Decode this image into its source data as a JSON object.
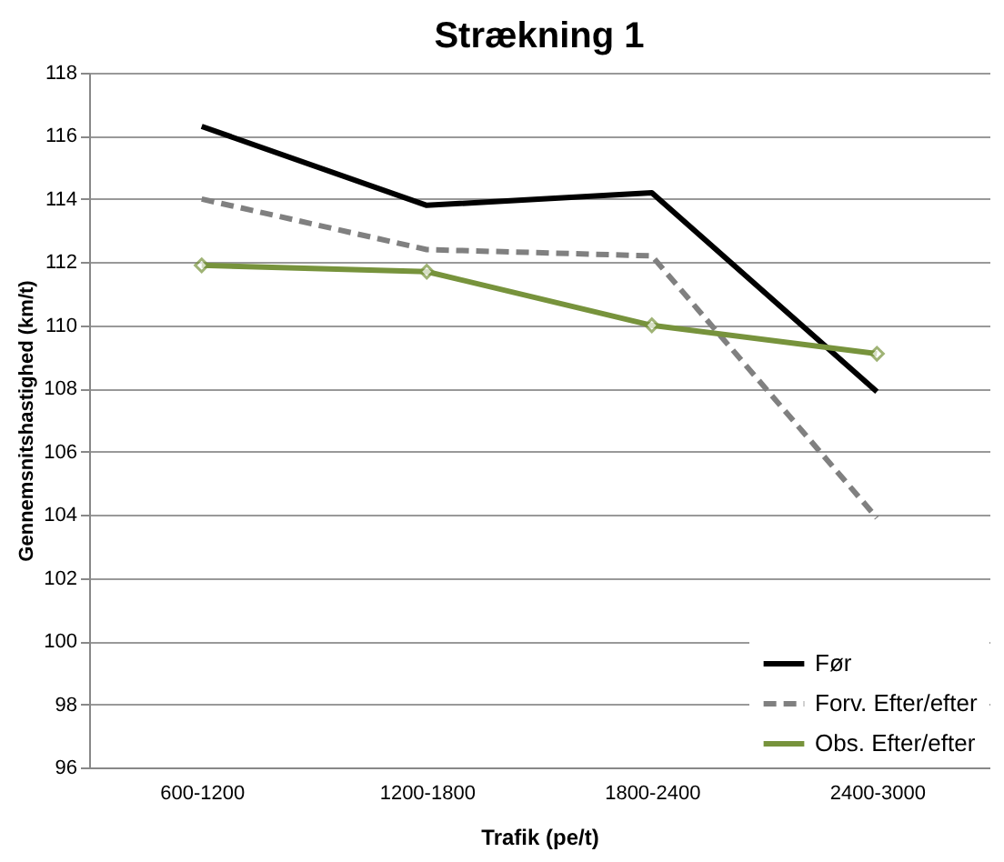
{
  "chart_data": {
    "type": "line",
    "title": "Strækning 1",
    "xlabel": "Trafik (pe/t)",
    "ylabel": "Gennemsnitshastighed  (km/t)",
    "categories": [
      "600-1200",
      "1200-1800",
      "1800-2400",
      "2400-3000"
    ],
    "series": [
      {
        "name": "Før",
        "color": "#000000",
        "values": [
          116.3,
          113.8,
          114.2,
          107.9
        ],
        "line_style": "solid",
        "marker": "none"
      },
      {
        "name": "Forv. Efter/efter",
        "color": "#808080",
        "values": [
          114.0,
          112.4,
          112.2,
          103.9
        ],
        "line_style": "dashed",
        "marker": "none"
      },
      {
        "name": "Obs. Efter/efter",
        "color": "#77933c",
        "values": [
          111.9,
          111.7,
          110.0,
          109.1
        ],
        "line_style": "solid",
        "marker": "diamond"
      }
    ],
    "ylim": [
      96,
      118
    ],
    "yticks": [
      96,
      98,
      100,
      102,
      104,
      106,
      108,
      110,
      112,
      114,
      116,
      118
    ],
    "grid": "y",
    "legend": "bottom right"
  }
}
